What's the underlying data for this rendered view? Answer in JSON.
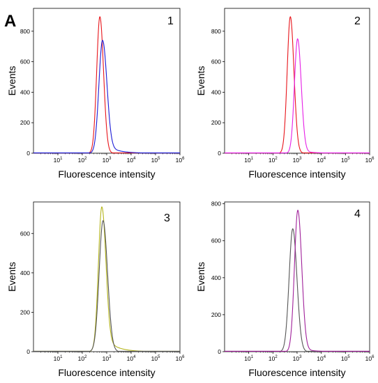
{
  "figure_label": "A",
  "chart_data": [
    {
      "type": "line",
      "panel": "1",
      "xlabel": "Fluorescence intensity",
      "ylabel": "Events",
      "x_scale": "log",
      "xlim": [
        0,
        6
      ],
      "ylim": [
        0,
        950
      ],
      "x_ticks": [
        "10^1",
        "10^2",
        "10^3",
        "10^4",
        "10^5",
        "10^6"
      ],
      "y_ticks": [
        0,
        200,
        400,
        600,
        800
      ],
      "series": [
        {
          "color": "#e8141a",
          "peak_log_x": 2.72,
          "peak_y": 895,
          "width": 0.13,
          "tail": 0.0
        },
        {
          "color": "#1a1ad6",
          "peak_log_x": 2.83,
          "peak_y": 740,
          "width": 0.15,
          "tail": 0.35
        }
      ]
    },
    {
      "type": "line",
      "panel": "2",
      "xlabel": "Fluorescence intensity",
      "ylabel": "Events",
      "x_scale": "log",
      "xlim": [
        0,
        6
      ],
      "ylim": [
        0,
        950
      ],
      "x_ticks": [
        "10^1",
        "10^2",
        "10^3",
        "10^4",
        "10^5",
        "10^6"
      ],
      "y_ticks": [
        0,
        200,
        400,
        600,
        800
      ],
      "series": [
        {
          "color": "#e8141a",
          "peak_log_x": 2.72,
          "peak_y": 895,
          "width": 0.13,
          "tail": 0.0
        },
        {
          "color": "#e61ee6",
          "peak_log_x": 3.02,
          "peak_y": 750,
          "width": 0.13,
          "tail": 0.1
        }
      ]
    },
    {
      "type": "line",
      "panel": "3",
      "xlabel": "Fluorescence intensity",
      "ylabel": "Events",
      "x_scale": "log",
      "xlim": [
        0,
        6
      ],
      "ylim": [
        0,
        760
      ],
      "x_ticks": [
        "10^1",
        "10^2",
        "10^3",
        "10^4",
        "10^5",
        "10^6"
      ],
      "y_ticks": [
        0,
        200,
        400,
        600
      ],
      "series": [
        {
          "color": "#b5b51e",
          "peak_log_x": 2.8,
          "peak_y": 735,
          "width": 0.14,
          "tail": 0.45
        },
        {
          "color": "#555555",
          "peak_log_x": 2.85,
          "peak_y": 665,
          "width": 0.16,
          "tail": 0.0
        }
      ]
    },
    {
      "type": "line",
      "panel": "4",
      "xlabel": "Fluorescence intensity",
      "ylabel": "Events",
      "x_scale": "log",
      "xlim": [
        0,
        6
      ],
      "ylim": [
        0,
        810
      ],
      "x_ticks": [
        "10^1",
        "10^2",
        "10^3",
        "10^4",
        "10^5",
        "10^6"
      ],
      "y_ticks": [
        0,
        200,
        400,
        600,
        800
      ],
      "series": [
        {
          "color": "#555555",
          "peak_log_x": 2.82,
          "peak_y": 665,
          "width": 0.15,
          "tail": 0.0
        },
        {
          "color": "#a0209a",
          "peak_log_x": 3.03,
          "peak_y": 765,
          "width": 0.14,
          "tail": 0.1
        }
      ]
    }
  ]
}
